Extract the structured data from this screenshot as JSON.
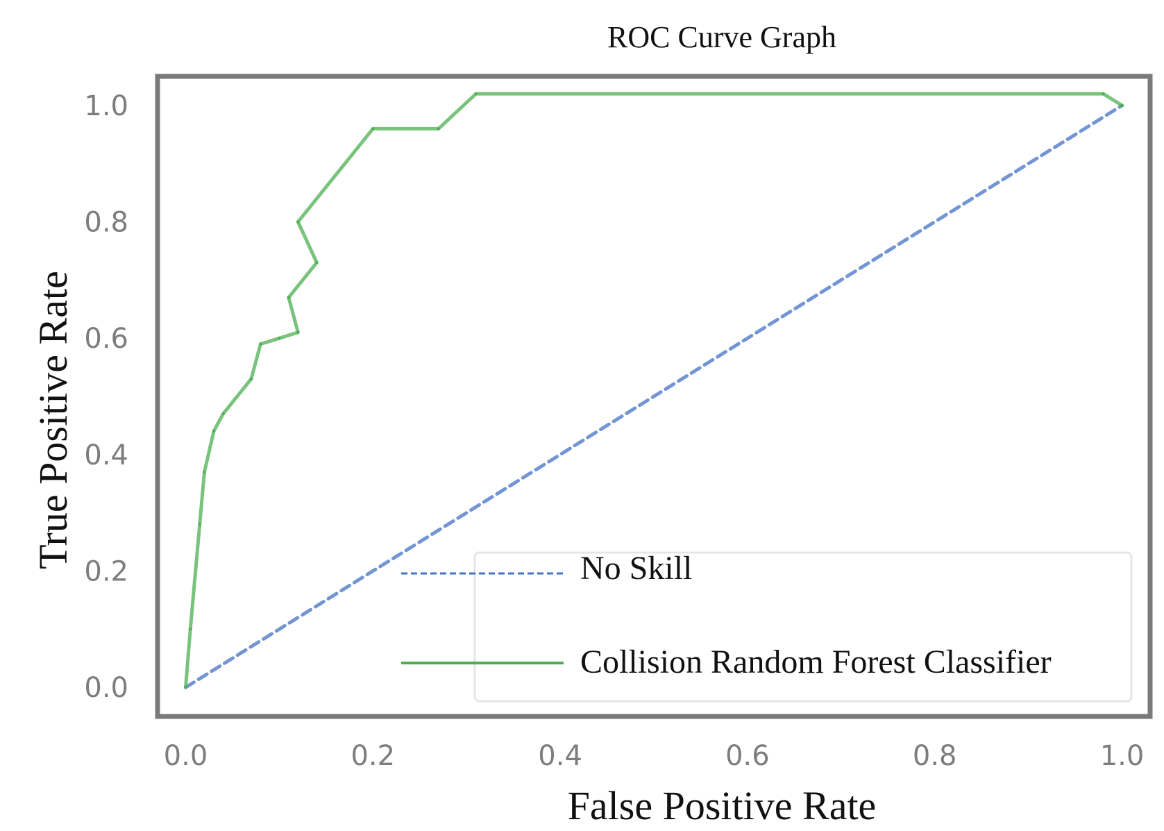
{
  "chart_data": {
    "type": "line",
    "title": "ROC Curve Graph",
    "xlabel": "False Positive Rate",
    "ylabel": "True Positive Rate",
    "xlim": [
      -0.03,
      1.03
    ],
    "ylim": [
      -0.05,
      1.05
    ],
    "xticks": [
      "0.0",
      "0.2",
      "0.4",
      "0.6",
      "0.8",
      "1.0"
    ],
    "yticks": [
      "0.0",
      "0.2",
      "0.4",
      "0.6",
      "0.8",
      "1.0"
    ],
    "grid": false,
    "legend_position": "lower-right",
    "series": [
      {
        "name": "No Skill",
        "style": "dashed",
        "color": "#4472c4",
        "x": [
          0.0,
          1.0
        ],
        "y": [
          0.0,
          1.0
        ]
      },
      {
        "name": "Collision Random Forest Classifier",
        "style": "solid",
        "color": "#4caf50",
        "x": [
          0.0,
          0.005,
          0.015,
          0.02,
          0.03,
          0.04,
          0.07,
          0.08,
          0.1,
          0.12,
          0.11,
          0.14,
          0.12,
          0.2,
          0.27,
          0.31,
          0.98,
          1.0
        ],
        "y": [
          0.0,
          0.1,
          0.28,
          0.37,
          0.44,
          0.47,
          0.53,
          0.59,
          0.6,
          0.61,
          0.67,
          0.73,
          0.8,
          0.96,
          0.96,
          1.02,
          1.02,
          1.0
        ]
      }
    ]
  }
}
